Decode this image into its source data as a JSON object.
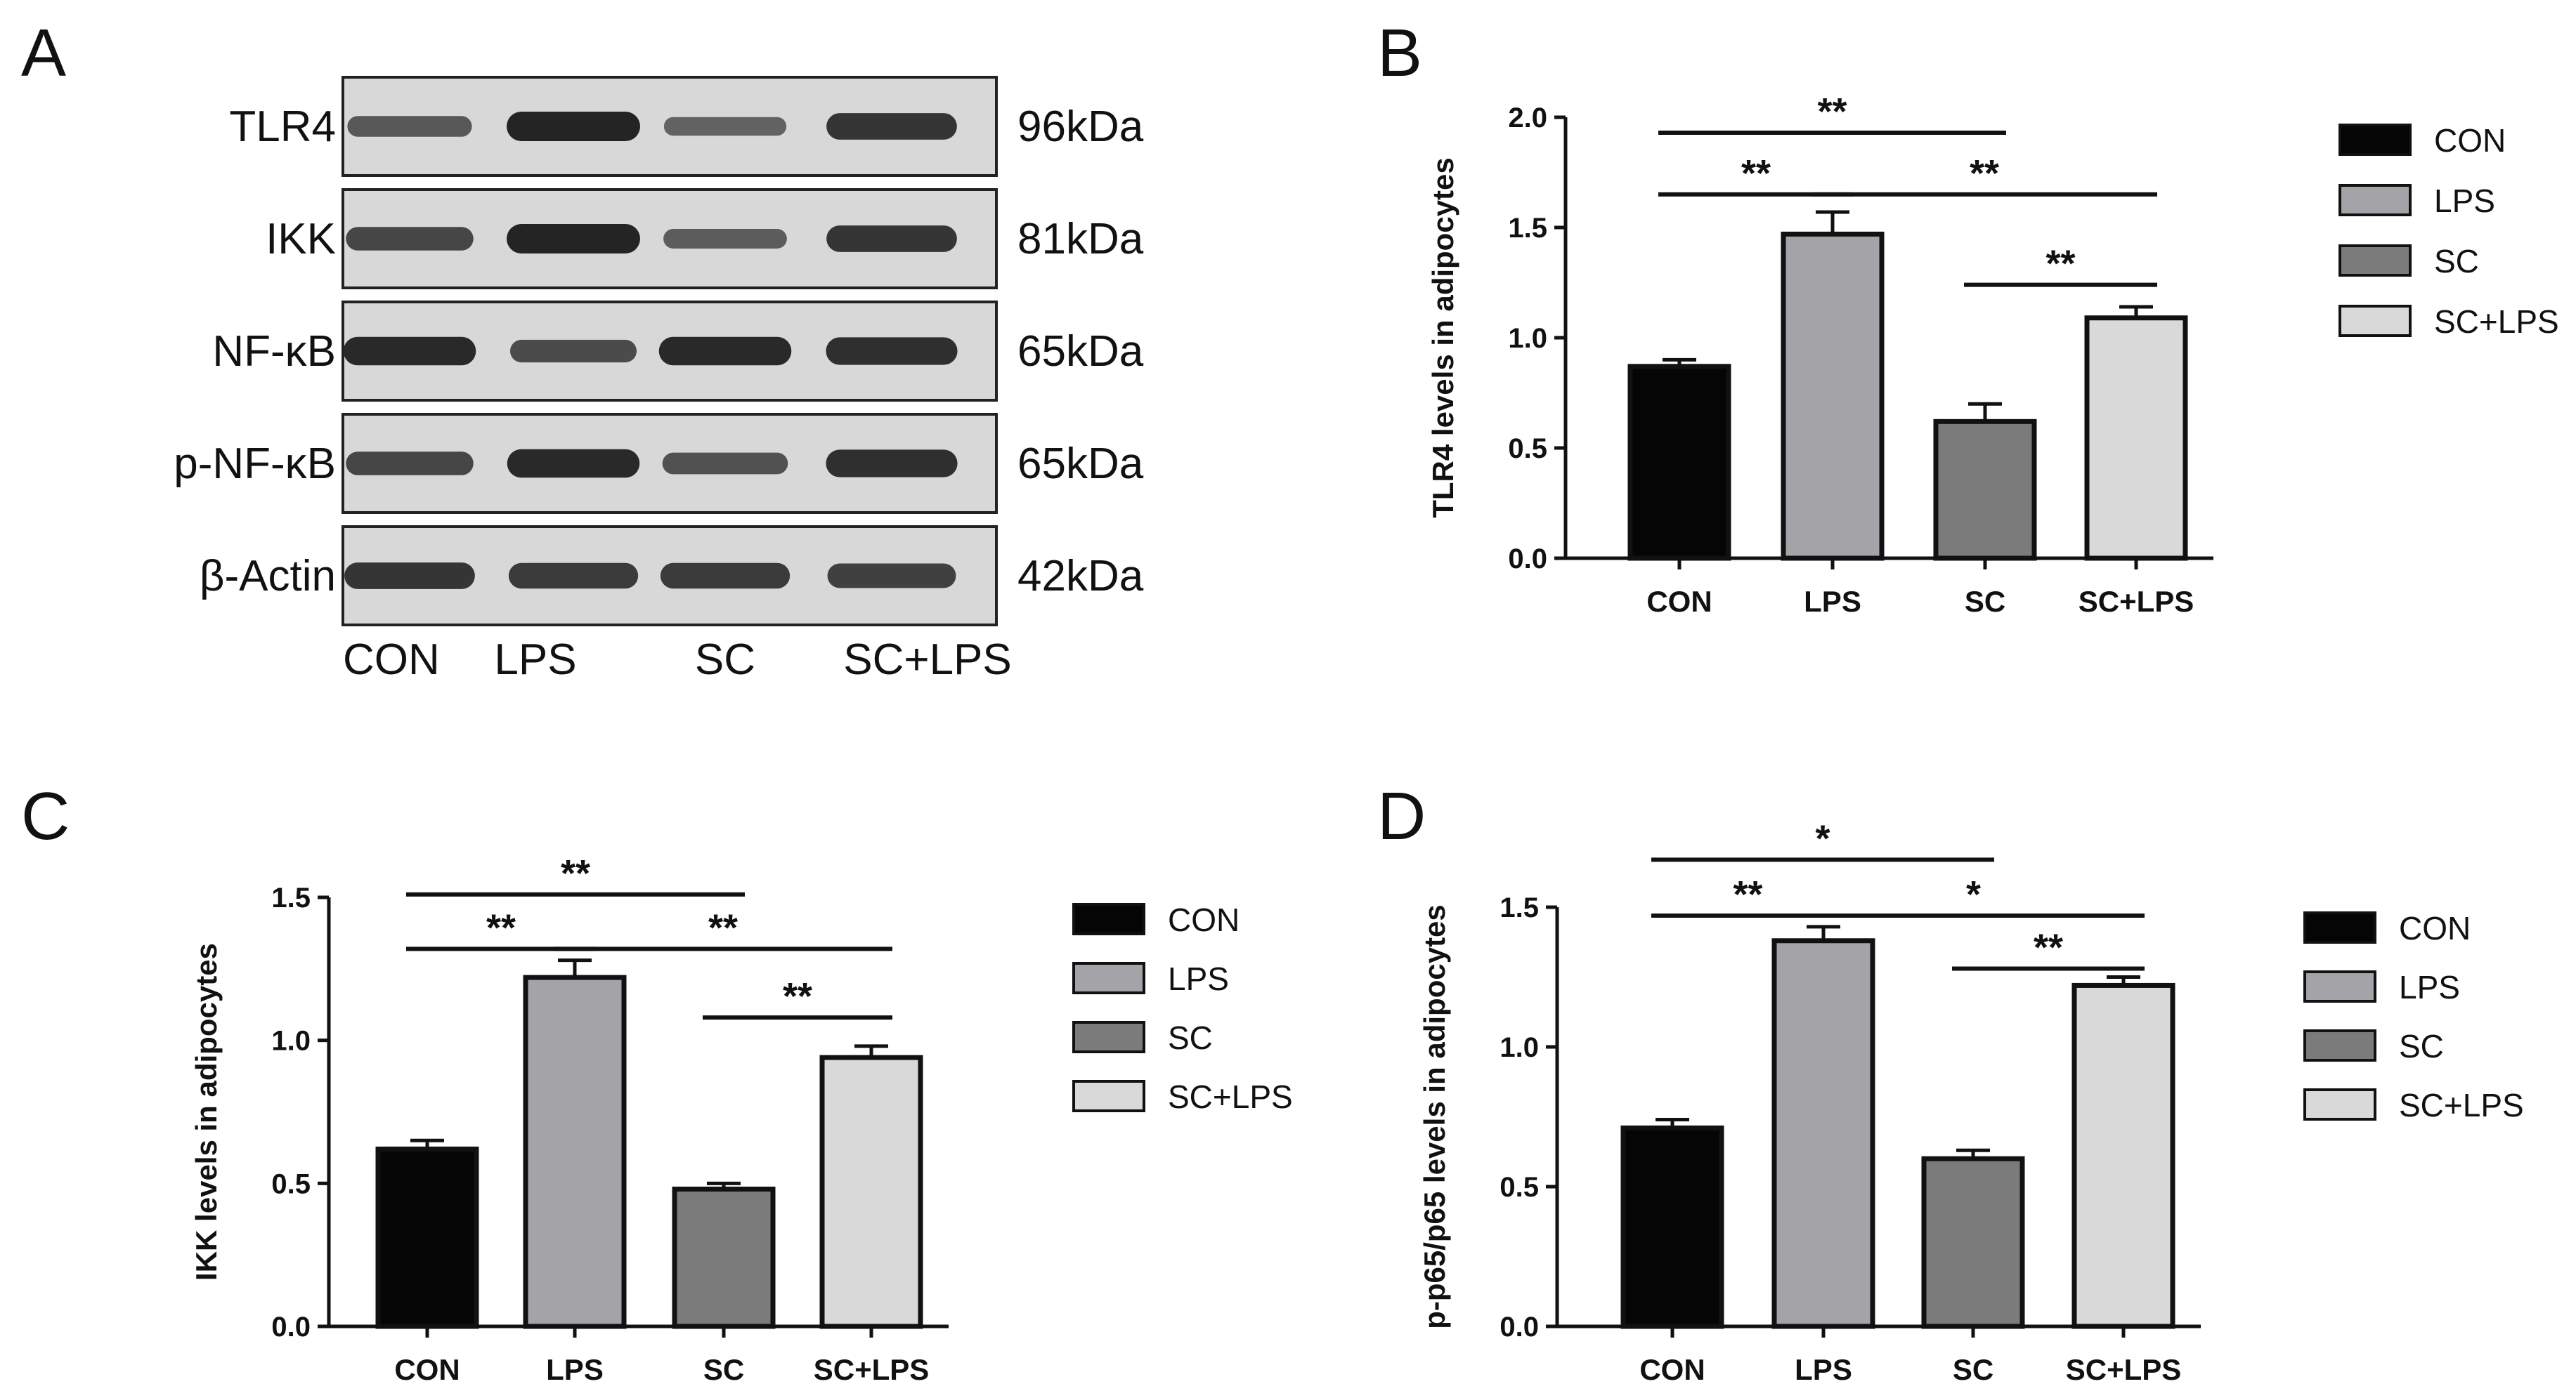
{
  "colors": {
    "CON": "#050505",
    "LPS": "#a3a3a8",
    "SC": "#7b7b7b",
    "SC+LPS": "#d9d9d9",
    "axis": "#111111",
    "blot_frame": "#222222",
    "blot_bg": "#d8d8d8",
    "band": "#1a1a1a"
  },
  "western_blot": {
    "panel_letter": "A",
    "lane_labels": [
      "CON",
      "LPS",
      "SC",
      "SC+LPS"
    ],
    "rows": [
      {
        "protein": "TLR4",
        "size": "96kDa",
        "intensities": [
          0.55,
          1.0,
          0.45,
          0.85
        ]
      },
      {
        "protein": "IKK",
        "size": "81kDa",
        "intensities": [
          0.7,
          1.0,
          0.5,
          0.85
        ]
      },
      {
        "protein": "NF-κB",
        "size": "65kDa",
        "intensities": [
          0.95,
          0.65,
          0.95,
          0.9
        ]
      },
      {
        "protein": "p-NF-κB",
        "size": "65kDa",
        "intensities": [
          0.7,
          0.95,
          0.6,
          0.9
        ]
      },
      {
        "protein": "β-Actin",
        "size": "42kDa",
        "intensities": [
          0.85,
          0.8,
          0.8,
          0.75
        ]
      }
    ]
  },
  "chart_data": [
    {
      "panel_letter": "B",
      "type": "bar",
      "categories": [
        "CON",
        "LPS",
        "SC",
        "SC+LPS"
      ],
      "values": [
        0.87,
        1.47,
        0.62,
        1.09
      ],
      "errors": [
        0.03,
        0.1,
        0.08,
        0.05
      ],
      "ylabel": "TLR4 levels in adipocytes",
      "ylim": [
        0,
        2.0
      ],
      "yticks": [
        0.0,
        0.5,
        1.0,
        1.5,
        2.0
      ],
      "ytick_labels": [
        "0.0",
        "0.5",
        "1.0",
        "1.5",
        "2.0"
      ],
      "legend": [
        "CON",
        "LPS",
        "SC",
        "SC+LPS"
      ],
      "legend_position": "right",
      "significance": [
        {
          "from": 0,
          "to": 2,
          "label": "**",
          "y": 1.93
        },
        {
          "from": 0,
          "to": 1,
          "label": "**",
          "y": 1.65
        },
        {
          "from": 1,
          "to": 3,
          "label": "**",
          "y": 1.65
        },
        {
          "from": 2,
          "to": 3,
          "label": "**",
          "y": 1.24
        }
      ]
    },
    {
      "panel_letter": "C",
      "type": "bar",
      "categories": [
        "CON",
        "LPS",
        "SC",
        "SC+LPS"
      ],
      "values": [
        0.62,
        1.22,
        0.48,
        0.94
      ],
      "errors": [
        0.03,
        0.06,
        0.02,
        0.04
      ],
      "ylabel": "IKK levels in adipocytes",
      "ylim": [
        0,
        1.5
      ],
      "yticks": [
        0.0,
        0.5,
        1.0,
        1.5
      ],
      "ytick_labels": [
        "0.0",
        "0.5",
        "1.0",
        "1.5"
      ],
      "legend": [
        "CON",
        "LPS",
        "SC",
        "SC+LPS"
      ],
      "legend_position": "right",
      "significance": [
        {
          "from": 0,
          "to": 2,
          "label": "**",
          "y": 1.51
        },
        {
          "from": 0,
          "to": 1,
          "label": "**",
          "y": 1.32
        },
        {
          "from": 1,
          "to": 3,
          "label": "**",
          "y": 1.32
        },
        {
          "from": 2,
          "to": 3,
          "label": "**",
          "y": 1.08
        }
      ]
    },
    {
      "panel_letter": "D",
      "type": "bar",
      "categories": [
        "CON",
        "LPS",
        "SC",
        "SC+LPS"
      ],
      "values": [
        0.71,
        1.38,
        0.6,
        1.22
      ],
      "errors": [
        0.03,
        0.05,
        0.03,
        0.03
      ],
      "ylabel": "p-p65/p65 levels in adipocytes",
      "ylim": [
        0,
        1.5
      ],
      "yticks": [
        0.0,
        0.5,
        1.0,
        1.5
      ],
      "ytick_labels": [
        "0.0",
        "0.5",
        "1.0",
        "1.5"
      ],
      "legend": [
        "CON",
        "LPS",
        "SC",
        "SC+LPS"
      ],
      "legend_position": "right",
      "significance": [
        {
          "from": 0,
          "to": 2,
          "label": "*",
          "y": 1.67
        },
        {
          "from": 0,
          "to": 1,
          "label": "**",
          "y": 1.47
        },
        {
          "from": 1,
          "to": 3,
          "label": "*",
          "y": 1.47
        },
        {
          "from": 2,
          "to": 3,
          "label": "**",
          "y": 1.28
        }
      ]
    }
  ]
}
